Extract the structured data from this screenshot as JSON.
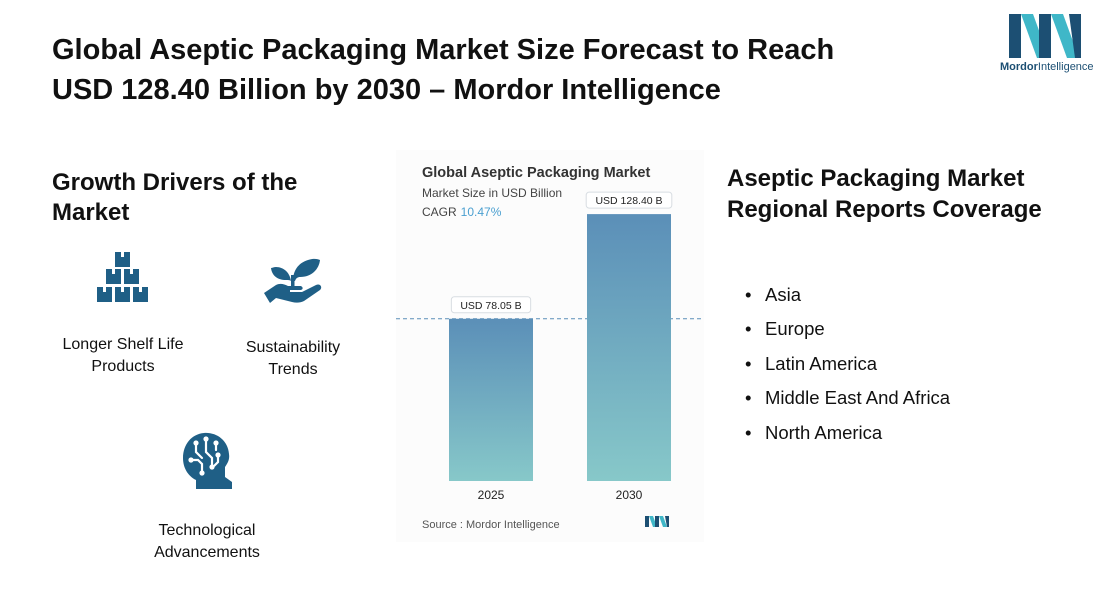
{
  "title": {
    "line1": "Global Aseptic Packaging Market Size Forecast to Reach",
    "line2": "USD 128.40 Billion by 2030 – Mordor Intelligence"
  },
  "logo": {
    "icon": "mordor-intelligence-logo",
    "text_bold": "Mordor",
    "text_regular": "Intelligence"
  },
  "drivers": {
    "heading": "Growth Drivers of the Market",
    "items": [
      {
        "label_line1": "Longer Shelf Life",
        "label_line2": "Products",
        "icon": "stacked-boxes-icon"
      },
      {
        "label_line1": "Sustainability",
        "label_line2": "Trends",
        "icon": "sprout-hand-icon"
      },
      {
        "label_line1": "Technological",
        "label_line2": "Advancements",
        "icon": "head-circuit-icon"
      }
    ]
  },
  "chart_data": {
    "type": "bar",
    "title": "Global Aseptic Packaging Market",
    "subtitle": "Market Size in USD Billion",
    "cagr_label": "CAGR",
    "cagr_value": "10.47%",
    "categories": [
      "2025",
      "2030"
    ],
    "values": [
      78.05,
      128.4
    ],
    "data_labels": [
      "USD 78.05 B",
      "USD 128.40 B"
    ],
    "ylim": [
      0,
      140
    ],
    "reference_line": "dashed at 2025 value",
    "source": "Source : Mordor Intelligence",
    "colors": {
      "bar_top": "#5b8fb8",
      "bar_bottom": "#87c8c9",
      "cagr": "#4a9fd0"
    }
  },
  "regions": {
    "heading": "Aseptic Packaging Market Regional Reports Coverage",
    "bullet": "•",
    "items": [
      "Asia",
      "Europe",
      "Latin America",
      "Middle East And Africa",
      "North America"
    ]
  },
  "colors": {
    "icon": "#1f5f86",
    "logo_dark": "#1c4f73",
    "logo_light": "#3fb7c8"
  }
}
